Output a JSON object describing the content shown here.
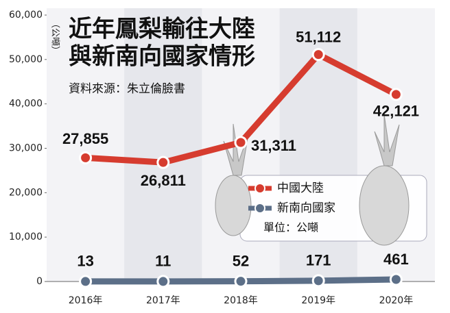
{
  "chart_data": {
    "type": "line",
    "title": [
      "近年鳳梨輸往大陸",
      "與新南向國家情形"
    ],
    "source": "資料來源：朱立倫臉書",
    "y_label": "（公噸）",
    "unit_note": "單位：公噸",
    "categories": [
      "2016年",
      "2017年",
      "2018年",
      "2019年",
      "2020年"
    ],
    "series": [
      {
        "name": "中國大陸",
        "color": "#d63c2f",
        "values": [
          27855,
          26811,
          31311,
          51112,
          42121
        ],
        "value_labels": [
          "27,855",
          "26,811",
          "31,311",
          "51,112",
          "42,121"
        ]
      },
      {
        "name": "新南向國家",
        "color": "#5c6f88",
        "values": [
          13,
          11,
          52,
          171,
          461
        ],
        "value_labels": [
          "13",
          "11",
          "52",
          "171",
          "461"
        ]
      }
    ],
    "ylim": [
      0,
      60000
    ],
    "yticks": [
      0,
      {
        "value": 10000,
        "label": "10,000"
      },
      {
        "value": 20000,
        "label": "20,000"
      },
      {
        "value": 30000,
        "label": "30,000"
      },
      {
        "value": 40000,
        "label": "40,000"
      },
      {
        "value": 50000,
        "label": "50,000"
      },
      {
        "value": 60000,
        "label": "60,000"
      }
    ]
  }
}
